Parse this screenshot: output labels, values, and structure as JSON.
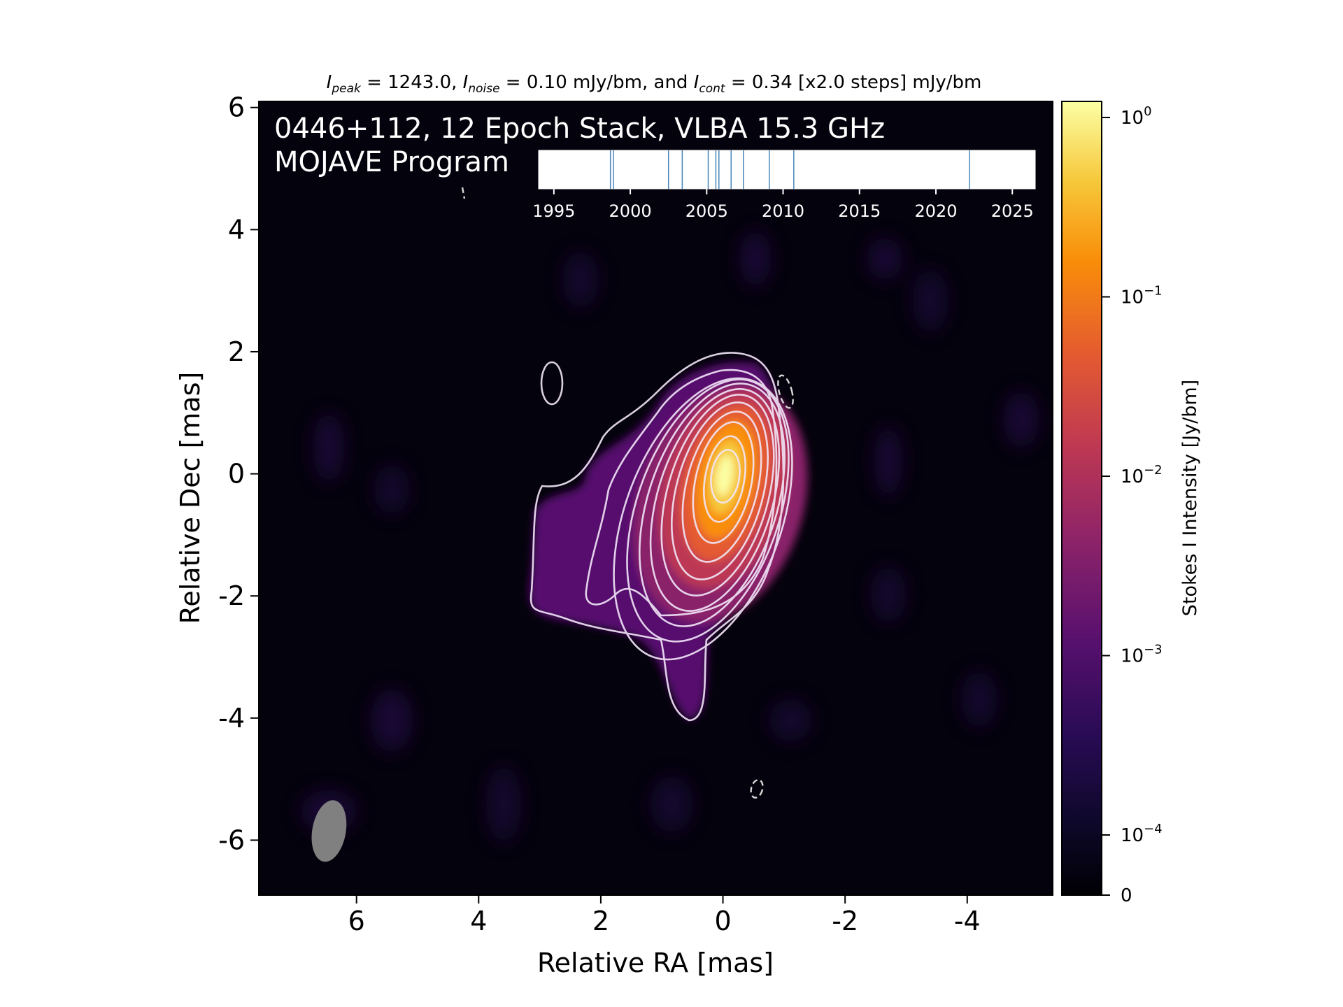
{
  "chart_data": {
    "type": "heatmap",
    "title_parts": {
      "peak_sym": "I",
      "peak_sub": "peak",
      "peak_rest": " = 1243.0, ",
      "noise_sym": "I",
      "noise_sub": "noise",
      "noise_rest": " = 0.10 mJy/bm, and ",
      "cont_sym": "I",
      "cont_sub": "cont",
      "cont_rest": " = 0.34 [x2.0 steps] mJy/bm"
    },
    "overlay_line1": "0446+112, 12 Epoch Stack, VLBA 15.3 GHz",
    "overlay_line2": "MOJAVE Program",
    "xlabel": "Relative RA [mas]",
    "ylabel": "Relative Dec [mas]",
    "xlim": [
      7.6,
      -5.4
    ],
    "ylim": [
      -6.9,
      6.1
    ],
    "xticks": [
      6,
      4,
      2,
      0,
      -2,
      -4
    ],
    "xtick_labels": [
      "6",
      "4",
      "2",
      "0",
      "-2",
      "-4"
    ],
    "yticks": [
      6,
      4,
      2,
      0,
      -2,
      -4,
      -6
    ],
    "ytick_labels": [
      "6",
      "4",
      "2",
      "0",
      "-2",
      "-4",
      "-6"
    ],
    "peak_position": [
      0,
      0
    ],
    "beam": {
      "ra": 6.45,
      "dec": -5.85,
      "major_mas": 1.2,
      "minor_mas": 0.55,
      "pa_deg": -10,
      "color": "#808080"
    },
    "contour_levels_mJy": [
      0.34,
      0.68,
      1.36,
      2.72,
      5.44,
      10.88,
      21.76,
      43.52,
      87.04,
      174.08,
      348.16,
      696.32
    ],
    "colormap": "inferno",
    "colorbar": {
      "label": "Stokes I Intensity [Jy/bm]",
      "scale": "log",
      "ticks": [
        {
          "base": "10",
          "exp": "0"
        },
        {
          "base": "10",
          "exp": "−1"
        },
        {
          "base": "10",
          "exp": "−2"
        },
        {
          "base": "10",
          "exp": "−3"
        },
        {
          "base": "10",
          "exp": "−4"
        }
      ],
      "zero_label": "0"
    },
    "epoch_timeline": {
      "xlim": [
        1994,
        2026.5
      ],
      "ticks": [
        "1995",
        "2000",
        "2005",
        "2010",
        "2015",
        "2020",
        "2025"
      ],
      "epochs": [
        1998.7,
        1998.9,
        2002.5,
        2003.4,
        2005.1,
        2005.6,
        2005.8,
        2006.6,
        2007.4,
        2009.1,
        2010.7,
        2022.2
      ],
      "line_color": "#4a86b8"
    }
  }
}
